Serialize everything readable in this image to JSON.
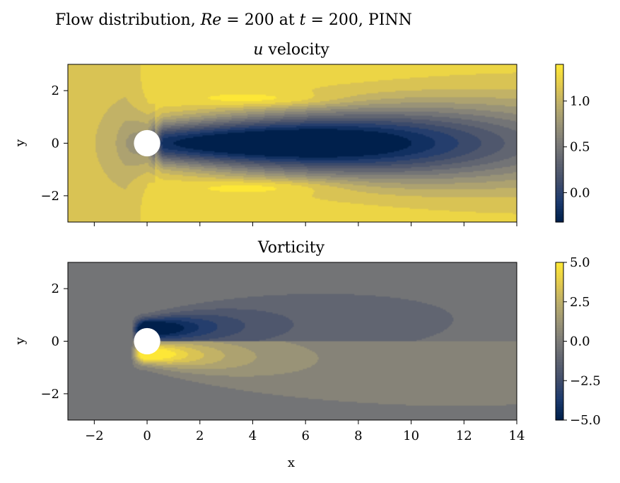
{
  "figure": {
    "suptitle_prefix": "Flow distribution, ",
    "suptitle_re": "Re",
    "suptitle_mid1": " = 200 at ",
    "suptitle_t": "t",
    "suptitle_mid2": " = 200, PINN"
  },
  "colors": {
    "cmap": [
      "#00204c",
      "#1c3a6e",
      "#414d6b",
      "#5f6370",
      "#7c7b78",
      "#9b9577",
      "#bcae6a",
      "#e2c94e",
      "#fde737"
    ],
    "background": "#ffffff",
    "axis": "#000000"
  },
  "chart_data": [
    {
      "type": "heatmap",
      "title_var": "u",
      "title_rest": " velocity",
      "xlabel": "",
      "ylabel": "y",
      "xlim": [
        -3,
        14
      ],
      "ylim": [
        -3,
        3
      ],
      "xticks": [
        -2,
        0,
        2,
        4,
        6,
        8,
        10,
        12,
        14
      ],
      "xtick_labels": [
        "",
        "",
        "",
        "",
        "",
        "",
        "",
        "",
        ""
      ],
      "yticks": [
        -2,
        0,
        2
      ],
      "ytick_labels": [
        "−2",
        "0",
        "2"
      ],
      "cylinder": {
        "x": 0,
        "y": 0,
        "r": 0.5
      },
      "colorbar": {
        "vmin": -0.32,
        "vmax": 1.4,
        "ticks": [
          0.0,
          0.5,
          1.0
        ],
        "tick_labels": [
          "0.0",
          "0.5",
          "1.0"
        ]
      },
      "field": "u_velocity"
    },
    {
      "type": "heatmap",
      "title": "Vorticity",
      "xlabel": "x",
      "ylabel": "y",
      "xlim": [
        -3,
        14
      ],
      "ylim": [
        -3,
        3
      ],
      "xticks": [
        -2,
        0,
        2,
        4,
        6,
        8,
        10,
        12,
        14
      ],
      "xtick_labels": [
        "−2",
        "0",
        "2",
        "4",
        "6",
        "8",
        "10",
        "12",
        "14"
      ],
      "yticks": [
        -2,
        0,
        2
      ],
      "ytick_labels": [
        "−2",
        "0",
        "2"
      ],
      "cylinder": {
        "x": 0,
        "y": 0,
        "r": 0.5
      },
      "colorbar": {
        "vmin": -5.0,
        "vmax": 5.0,
        "ticks": [
          -5.0,
          -2.5,
          0.0,
          2.5,
          5.0
        ],
        "tick_labels": [
          "−5.0",
          "−2.5",
          "0.0",
          "2.5",
          "5.0"
        ]
      },
      "field": "vorticity"
    }
  ]
}
